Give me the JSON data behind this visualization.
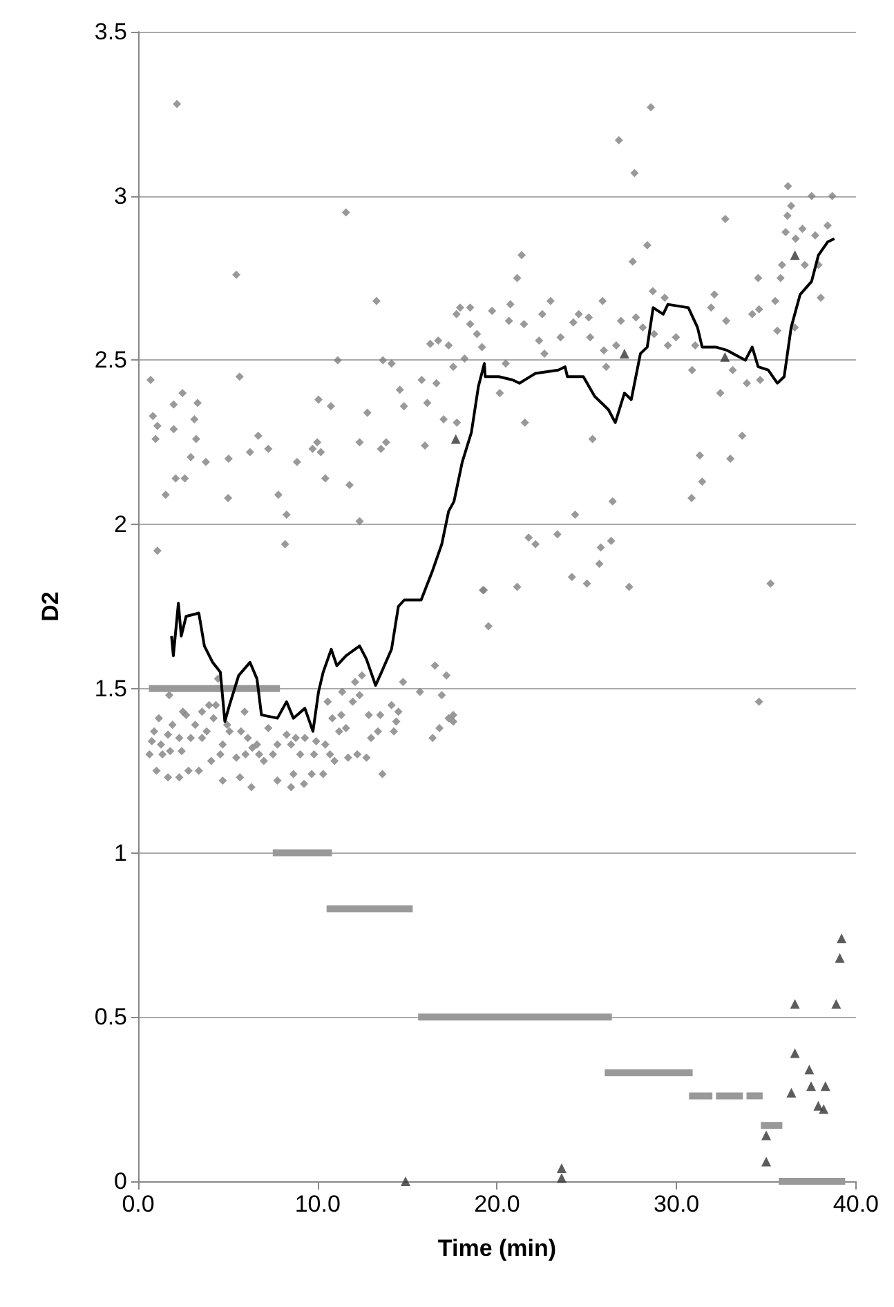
{
  "chart_data": {
    "type": "scatter",
    "xlabel": "Time (min)",
    "ylabel": "D2",
    "xlim": [
      0,
      40
    ],
    "ylim": [
      0,
      3.5
    ],
    "xticks": [
      {
        "value": 0,
        "label": "0.0"
      },
      {
        "value": 10,
        "label": "10.0"
      },
      {
        "value": 20,
        "label": "20.0"
      },
      {
        "value": 30,
        "label": "30.0"
      },
      {
        "value": 40,
        "label": "40.0"
      }
    ],
    "yticks": [
      0,
      0.5,
      1,
      1.5,
      2,
      2.5,
      3,
      3.5
    ],
    "grid": "y",
    "series": [
      {
        "marker": "diamond",
        "color": "#808080",
        "x": [
          2.16,
          11.58,
          5.47,
          13.28,
          0.69,
          5.65,
          0.82,
          1.07,
          0.97,
          1.98,
          2.47,
          3.31,
          3.13,
          3.23,
          1.98,
          2.93,
          3.77,
          2.09,
          2.6,
          1.53,
          1.07,
          5.04,
          5.01,
          6.23,
          6.69,
          7.25,
          7.81,
          8.27,
          8.19,
          8.85,
          9.72,
          9.98,
          10.18,
          10.05,
          10.74,
          10.43,
          11.12,
          11.78,
          12.34,
          12.34,
          12.77,
          13.53,
          13.82,
          13.64,
          14.12,
          14.58,
          14.81,
          15.8,
          15.98,
          16.11,
          16.62,
          17.02,
          17.76,
          16.28,
          16.72,
          17.3,
          17.74,
          17.94,
          18.5,
          18.5,
          18.88,
          19.72,
          19.16,
          17.56,
          18.19,
          19.21,
          21.37,
          21.12,
          20.74,
          21.5,
          20.66,
          22.34,
          22.52,
          22.98,
          23.54,
          24.25,
          24.55,
          25.11,
          25.19,
          25.88,
          25.95,
          26.08,
          26.64,
          26.9,
          22.64,
          20.48,
          20.15,
          21.55,
          25.32,
          24.35,
          26.44,
          21.76,
          22.14,
          23.36,
          24.17,
          25.01,
          25.7,
          25.78,
          26.36,
          27.36,
          19.26,
          21.12,
          26.79,
          28.57,
          27.66,
          28.37,
          27.56,
          28.68,
          27.74,
          28.12,
          28.75,
          29.52,
          29.97,
          29.34,
          30.87,
          31.04,
          31.93,
          32.11,
          32.77,
          32.44,
          33.13,
          33.92,
          34.66,
          34.22,
          34.55,
          34.6,
          35.5,
          35.62,
          35.8,
          35.88,
          36.08,
          36.18,
          36.39,
          36.21,
          32.72,
          37.02,
          36.64,
          37.15,
          37.53,
          38.68,
          38.42,
          37.73,
          38.04,
          37.91,
          36.59,
          31.3,
          31.43,
          30.84,
          33.0,
          33.66,
          35.24,
          34.6,
          19.52,
          17.56,
          17.56,
          16.54,
          17.18,
          15.7,
          14.76,
          16.92,
          16.41,
          16.79,
          17.3,
          13.61,
          14.38,
          14.5,
          14.12,
          14.25,
          13.36,
          13.49,
          12.85,
          12.98,
          12.34,
          12.47,
          12.09,
          11.96,
          11.58,
          11.7,
          12.21,
          12.72,
          10.82,
          11.2,
          11.32,
          10.56,
          11.37,
          10.94,
          10.31,
          10.43,
          9.8,
          9.92,
          9.29,
          9.03,
          8.78,
          8.52,
          8.27,
          8.65,
          8.52,
          9.24,
          7.76,
          7.51,
          7.25,
          7.76,
          7.0,
          6.74,
          6.62,
          6.36,
          6.11,
          5.98,
          5.93,
          6.31,
          5.67,
          5.47,
          5.73,
          5.09,
          4.96,
          4.71,
          4.58,
          4.71,
          4.07,
          4.33,
          3.95,
          4.2,
          3.82,
          3.56,
          3.38,
          3.56,
          3.18,
          2.93,
          2.8,
          2.67,
          2.49,
          2.29,
          2.42,
          2.29,
          1.66,
          1.91,
          1.66,
          1.15,
          0.89,
          0.76,
          1.27,
          0.63,
          1.35,
          1.78,
          1.02,
          1.73,
          4.45,
          9.67,
          10.69
        ],
        "values": [
          3.28,
          2.95,
          2.76,
          2.68,
          2.44,
          2.45,
          2.33,
          2.3,
          2.26,
          2.365,
          2.4,
          2.37,
          2.32,
          2.26,
          2.29,
          2.205,
          2.19,
          2.14,
          2.14,
          2.09,
          1.92,
          2.2,
          2.08,
          2.22,
          2.27,
          2.23,
          2.09,
          2.03,
          1.94,
          2.19,
          2.23,
          2.25,
          2.22,
          2.38,
          2.36,
          2.14,
          2.5,
          2.12,
          2.25,
          2.01,
          2.34,
          2.23,
          2.25,
          2.5,
          2.49,
          2.41,
          2.36,
          2.44,
          2.24,
          2.37,
          2.43,
          2.32,
          2.31,
          2.55,
          2.56,
          2.545,
          2.64,
          2.66,
          2.66,
          2.61,
          2.58,
          2.65,
          2.54,
          2.48,
          2.505,
          1.8,
          2.82,
          2.75,
          2.67,
          2.61,
          2.62,
          2.56,
          2.64,
          2.68,
          2.57,
          2.615,
          2.64,
          2.63,
          2.57,
          2.68,
          2.53,
          2.48,
          2.545,
          2.62,
          2.52,
          2.49,
          2.4,
          2.31,
          2.26,
          2.03,
          2.07,
          1.96,
          1.94,
          1.97,
          1.84,
          1.82,
          1.88,
          1.93,
          1.95,
          1.81,
          1.8,
          1.81,
          3.17,
          3.27,
          3.07,
          2.85,
          2.8,
          2.71,
          2.63,
          2.6,
          2.58,
          2.545,
          2.57,
          2.69,
          2.47,
          2.545,
          2.66,
          2.7,
          2.62,
          2.4,
          2.47,
          2.43,
          2.44,
          2.64,
          2.75,
          2.655,
          2.68,
          2.59,
          2.75,
          2.79,
          2.89,
          2.94,
          2.97,
          3.03,
          2.93,
          2.9,
          2.87,
          2.79,
          3.0,
          3.0,
          2.91,
          2.88,
          2.69,
          2.79,
          2.6,
          2.21,
          2.13,
          2.08,
          2.2,
          2.27,
          1.82,
          1.46,
          1.69,
          1.42,
          1.4,
          1.57,
          1.54,
          1.49,
          1.52,
          1.48,
          1.35,
          1.38,
          1.41,
          1.24,
          1.4,
          1.43,
          1.45,
          1.37,
          1.37,
          1.42,
          1.42,
          1.35,
          1.48,
          1.54,
          1.52,
          1.46,
          1.38,
          1.29,
          1.3,
          1.29,
          1.41,
          1.37,
          1.42,
          1.46,
          1.49,
          1.28,
          1.24,
          1.33,
          1.3,
          1.34,
          1.35,
          1.3,
          1.35,
          1.33,
          1.36,
          1.24,
          1.2,
          1.21,
          1.33,
          1.3,
          1.38,
          1.22,
          1.28,
          1.3,
          1.33,
          1.32,
          1.35,
          1.3,
          1.43,
          1.2,
          1.23,
          1.29,
          1.37,
          1.37,
          1.39,
          1.33,
          1.3,
          1.22,
          1.28,
          1.45,
          1.45,
          1.41,
          1.37,
          1.35,
          1.25,
          1.43,
          1.39,
          1.35,
          1.25,
          1.42,
          1.43,
          1.35,
          1.31,
          1.23,
          1.23,
          1.39,
          1.36,
          1.41,
          1.37,
          1.34,
          1.33,
          1.3,
          1.3,
          1.31,
          1.25,
          1.48,
          1.53,
          1.24,
          1.3
        ]
      },
      {
        "type": "line",
        "marker": "none",
        "color": "#999999",
        "x": [
          0.6,
          7.9
        ],
        "values": [
          1.5,
          1.5
        ]
      },
      {
        "type": "line",
        "marker": "none",
        "color": "#999999",
        "x": [
          7.5,
          10.8
        ],
        "values": [
          1.0,
          1.0
        ]
      },
      {
        "type": "line",
        "marker": "none",
        "color": "#999999",
        "x": [
          10.5,
          15.3
        ],
        "values": [
          0.83,
          0.83
        ]
      },
      {
        "type": "line",
        "marker": "none",
        "color": "#999999",
        "x": [
          15.6,
          26.4
        ],
        "values": [
          0.5,
          0.5
        ]
      },
      {
        "type": "line",
        "marker": "none",
        "color": "#999999",
        "x": [
          26.0,
          30.9
        ],
        "values": [
          0.33,
          0.33
        ]
      },
      {
        "type": "line",
        "marker": "none",
        "color": "#999999",
        "x": [
          30.7,
          32.0
        ],
        "values": [
          0.26,
          0.26
        ]
      },
      {
        "type": "line",
        "marker": "none",
        "color": "#999999",
        "x": [
          32.2,
          33.7
        ],
        "values": [
          0.26,
          0.26
        ]
      },
      {
        "type": "line",
        "marker": "none",
        "color": "#999999",
        "x": [
          33.9,
          34.8
        ],
        "values": [
          0.26,
          0.26
        ]
      },
      {
        "type": "line",
        "marker": "none",
        "color": "#999999",
        "x": [
          34.7,
          35.9
        ],
        "values": [
          0.17,
          0.17
        ]
      },
      {
        "type": "line",
        "marker": "none",
        "color": "#999999",
        "x": [
          35.7,
          39.4
        ],
        "values": [
          0,
          0
        ]
      },
      {
        "type": "line",
        "marker": "none",
        "color": "#000000",
        "x": [
          1.86,
          1.96,
          2.24,
          2.4,
          2.67,
          3.38,
          3.69,
          4.15,
          4.58,
          4.83,
          5.09,
          5.6,
          6.23,
          6.62,
          6.87,
          7.76,
          8.27,
          8.65,
          9.29,
          9.74,
          10.05,
          10.31,
          10.76,
          11.07,
          11.58,
          12.34,
          12.72,
          13.23,
          13.56,
          14.12,
          14.5,
          14.83,
          15.77,
          16.41,
          16.92,
          17.3,
          17.6,
          18.06,
          18.57,
          18.96,
          19.29,
          19.34,
          20.1,
          20.87,
          21.25,
          22.14,
          23.41,
          23.79,
          23.92,
          24.81,
          25.44,
          26.2,
          26.59,
          27.1,
          27.48,
          27.99,
          28.37,
          28.7,
          29.26,
          29.52,
          30.66,
          31.17,
          31.43,
          32.19,
          32.82,
          33.84,
          34.22,
          34.55,
          35.11,
          35.62,
          36.0,
          36.39,
          36.89,
          37.53,
          37.91,
          38.42,
          38.8
        ],
        "values": [
          1.66,
          1.6,
          1.76,
          1.66,
          1.72,
          1.73,
          1.63,
          1.58,
          1.55,
          1.4,
          1.45,
          1.54,
          1.58,
          1.53,
          1.42,
          1.41,
          1.46,
          1.41,
          1.44,
          1.37,
          1.49,
          1.55,
          1.62,
          1.57,
          1.6,
          1.63,
          1.59,
          1.51,
          1.55,
          1.62,
          1.75,
          1.77,
          1.77,
          1.86,
          1.94,
          2.04,
          2.07,
          2.19,
          2.28,
          2.42,
          2.49,
          2.45,
          2.45,
          2.44,
          2.43,
          2.46,
          2.47,
          2.48,
          2.45,
          2.45,
          2.39,
          2.35,
          2.31,
          2.4,
          2.38,
          2.52,
          2.54,
          2.66,
          2.64,
          2.67,
          2.66,
          2.6,
          2.54,
          2.54,
          2.53,
          2.5,
          2.54,
          2.48,
          2.47,
          2.43,
          2.45,
          2.6,
          2.7,
          2.74,
          2.82,
          2.86,
          2.87
        ]
      },
      {
        "marker": "triangle",
        "color": "#333333",
        "x": [
          14.9,
          23.6,
          23.6,
          35.0,
          35.0,
          36.4,
          36.6,
          36.6,
          37.4,
          37.5,
          38.3,
          37.9,
          38.2,
          38.9,
          39.1,
          39.2,
          17.7,
          27.1,
          32.7,
          36.6
        ],
        "values": [
          0,
          0.04,
          0.01,
          0.14,
          0.06,
          0.27,
          0.54,
          0.39,
          0.34,
          0.29,
          0.29,
          0.23,
          0.22,
          0.54,
          0.68,
          0.74,
          2.26,
          2.52,
          2.51,
          2.82
        ]
      }
    ]
  }
}
